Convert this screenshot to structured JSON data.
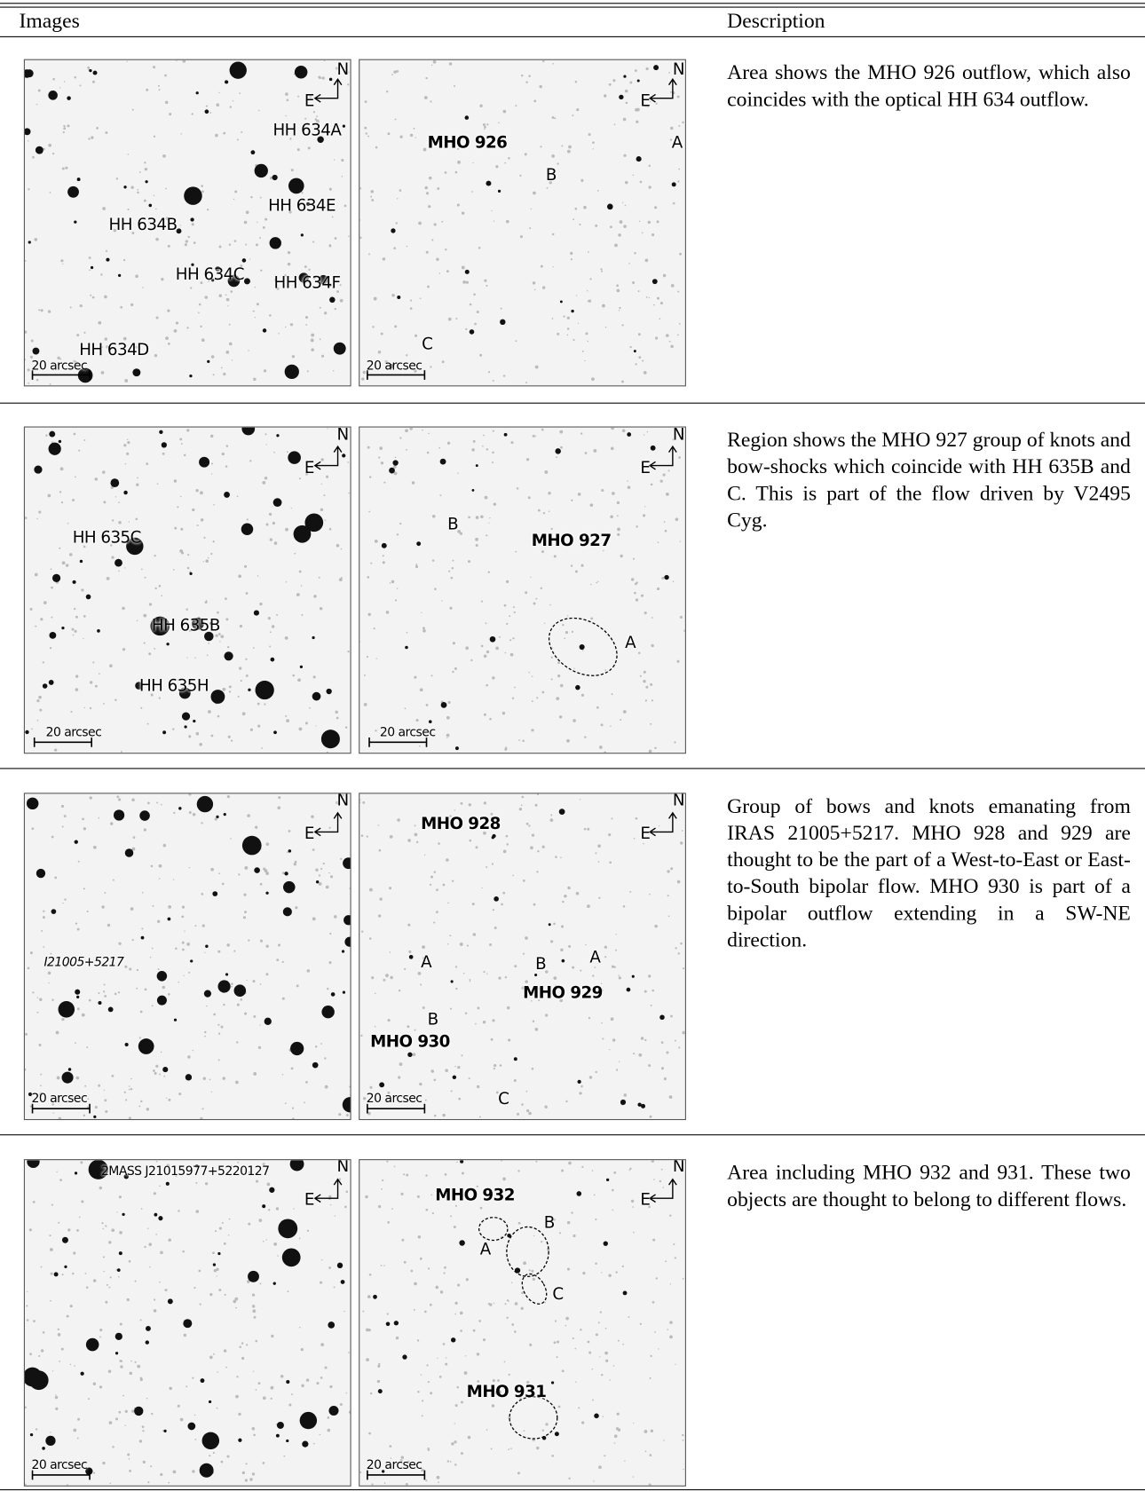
{
  "header": {
    "images": "Images",
    "description": "Description"
  },
  "rows": [
    {
      "left": [
        "N",
        "E",
        "HH 634A",
        "HH 634E",
        "HH 634B",
        "HH 634C",
        "HH 634F",
        "HH 634D",
        "20 arcsec"
      ],
      "right": [
        "N",
        "E",
        "A",
        "MHO 926",
        "B",
        "C",
        "20 arcsec"
      ],
      "description": "Area shows the MHO 926 outflow, which also coincides with the optical HH 634 outflow."
    },
    {
      "left": [
        "N",
        "E",
        "HH 635C",
        "HH 635B",
        "HH 635H",
        "20 arcsec"
      ],
      "right": [
        "N",
        "E",
        "B",
        "MHO 927",
        "A",
        "20 arcsec"
      ],
      "description": "Region shows the MHO 927 group of knots and bow-shocks which coincide with HH 635B and C. This is part of the flow driven by V2495 Cyg."
    },
    {
      "left": [
        "N",
        "E",
        "I21005+5217",
        "20 arcsec"
      ],
      "right": [
        "N",
        "E",
        "MHO 928",
        "A",
        "B",
        "A",
        "MHO 929",
        "B",
        "MHO 930",
        "C",
        "20 arcsec"
      ],
      "description": "Group of bows and knots emanating from IRAS 21005+5217. MHO 928 and 929 are thought to be the part of a West-to-East or East-to-South bipolar flow. MHO 930 is part of a bipolar outflow extending in a SW-NE direction."
    },
    {
      "left": [
        "2MASS J21015977+5220127",
        "N",
        "E",
        "20 arcsec"
      ],
      "right": [
        "N",
        "E",
        "MHO 932",
        "B",
        "A",
        "C",
        "MHO 931",
        "20 arcsec"
      ],
      "description": "Area including MHO 932 and 931. These two objects are thought to belong to different flows."
    }
  ]
}
